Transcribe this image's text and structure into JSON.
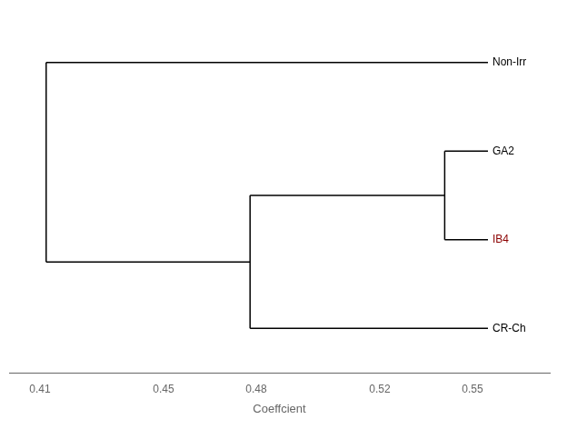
{
  "chart_data": {
    "type": "dendrogram",
    "categories": [
      "Non-Irr",
      "GA2",
      "IB4",
      "CR-Ch"
    ],
    "colors": [
      "#000000",
      "#000000",
      "#8B0000",
      "#000000"
    ],
    "leaf_value": 0.555,
    "merges": [
      {
        "left": [
          "GA2"
        ],
        "right": [
          "IB4"
        ],
        "value": 0.541
      },
      {
        "left": [
          "GA2",
          "IB4"
        ],
        "right": [
          "CR-Ch"
        ],
        "value": 0.478
      },
      {
        "left": [
          "Non-Irr"
        ],
        "right": [
          "GA2",
          "IB4",
          "CR-Ch"
        ],
        "value": 0.412
      }
    ],
    "color": "#000000",
    "xlabel": "Coeffcient",
    "xlim": [
      0.4,
      0.575
    ],
    "xticks": [
      0.41,
      0.45,
      0.48,
      0.52,
      0.55
    ],
    "grid": false,
    "tick_labels": "x"
  }
}
